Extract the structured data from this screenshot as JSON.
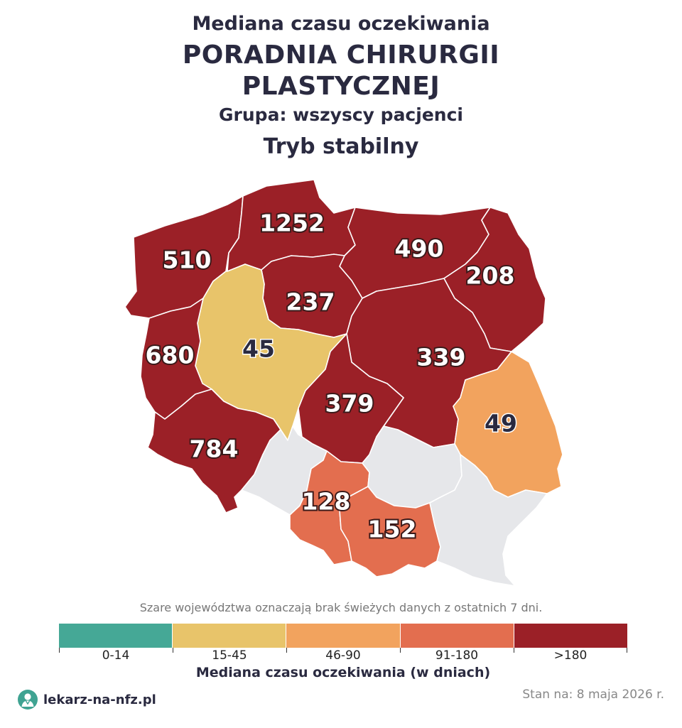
{
  "title": {
    "prefix": "Mediana czasu oczekiwania",
    "main_line1": "PORADNIA CHIRURGII",
    "main_line2": "PLASTYCZNEJ",
    "group": "Grupa: wszyscy pacjenci",
    "mode": "Tryb stabilny"
  },
  "colors": {
    "c0_14": "#45a896",
    "c15_45": "#e8c46a",
    "c46_90": "#f2a35e",
    "c91_180": "#e36e4f",
    "c180": "#9b2027",
    "no_data": "#e6e7ea"
  },
  "regions": [
    {
      "id": "zachodniopomorskie",
      "value": "510",
      "class": ">180"
    },
    {
      "id": "pomorskie",
      "value": "1252",
      "class": ">180"
    },
    {
      "id": "warminsko-mazurskie",
      "value": "490",
      "class": ">180"
    },
    {
      "id": "podlaskie",
      "value": "208",
      "class": ">180"
    },
    {
      "id": "kujawsko-pomorskie",
      "value": "237",
      "class": ">180"
    },
    {
      "id": "wielkopolskie",
      "value": "45",
      "class": "15-45"
    },
    {
      "id": "lubuskie",
      "value": "680",
      "class": ">180"
    },
    {
      "id": "mazowieckie",
      "value": "339",
      "class": ">180"
    },
    {
      "id": "lodzkie",
      "value": "379",
      "class": ">180"
    },
    {
      "id": "lubelskie",
      "value": "49",
      "class": "46-90"
    },
    {
      "id": "dolnoslaskie",
      "value": "784",
      "class": ">180"
    },
    {
      "id": "slaskie",
      "value": "128",
      "class": "91-180"
    },
    {
      "id": "malopolskie",
      "value": "152",
      "class": "91-180"
    },
    {
      "id": "opolskie",
      "value": "",
      "class": "no-data"
    },
    {
      "id": "swietokrzyskie",
      "value": "",
      "class": "no-data"
    },
    {
      "id": "podkarpackie",
      "value": "",
      "class": "no-data"
    }
  ],
  "note": "Szare województwa oznaczają brak świeżych danych z ostatnich 7 dni.",
  "legend": {
    "title": "Mediana czasu oczekiwania (w dniach)",
    "bins": [
      {
        "label": "0-14",
        "color": "#45a896"
      },
      {
        "label": "15-45",
        "color": "#e8c46a"
      },
      {
        "label": "46-90",
        "color": "#f2a35e"
      },
      {
        "label": "91-180",
        "color": "#e36e4f"
      },
      {
        "label": ">180",
        "color": "#9b2027"
      }
    ]
  },
  "footer": {
    "brand": "lekarz-na-nfz.pl",
    "date": "Stan na: 8 maja 2026 r."
  }
}
